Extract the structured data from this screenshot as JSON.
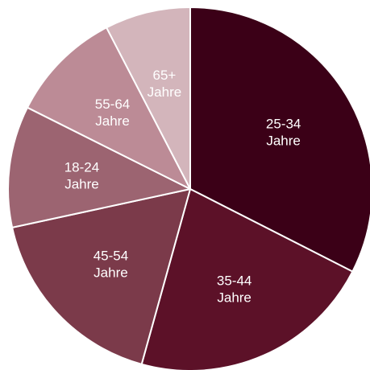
{
  "chart_data": {
    "type": "pie",
    "categories": [
      "25-34 Jahre",
      "35-44 Jahre",
      "45-54 Jahre",
      "18-24 Jahre",
      "55-64 Jahre",
      "65+ Jahre"
    ],
    "values": [
      32.5,
      21.8,
      17.3,
      10.8,
      10.0,
      7.6
    ],
    "label_lines": [
      [
        "25-34",
        "Jahre"
      ],
      [
        "35-44",
        "Jahre"
      ],
      [
        "45-54",
        "Jahre"
      ],
      [
        "18-24",
        "Jahre"
      ],
      [
        "55-64",
        "Jahre"
      ],
      [
        "65+",
        "Jahre"
      ]
    ],
    "colors": [
      "#3b0017",
      "#5c1128",
      "#7b3a4a",
      "#9c6471",
      "#bc8b96",
      "#d3b5bb"
    ],
    "start_position": "top",
    "direction": "clockwise",
    "title": "",
    "legend": "none"
  }
}
